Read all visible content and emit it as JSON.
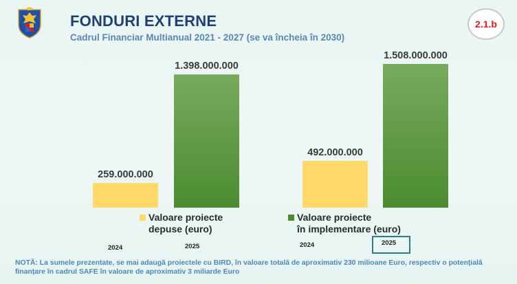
{
  "header": {
    "title": "FONDURI EXTERNE",
    "subtitle": "Cadrul Financiar Multianual 2021 - 2027 (se va încheia în 2030)",
    "badge": "2.1.b"
  },
  "colors": {
    "yellow": "#ffd96a",
    "green_top": "#77a85e",
    "green_bottom": "#4b8c2f",
    "title": "#1f3f7a",
    "accent": "#5b86b4"
  },
  "chart_data": {
    "type": "bar",
    "unit": "euro",
    "groups": [
      {
        "name": "Valoare proiecte depuse (euro)",
        "legend_line1": "Valoare proiecte",
        "legend_line2": "depuse (euro)",
        "bars": [
          {
            "year": "2024",
            "value": 259000000,
            "label": "259.000.000",
            "color": "yellow"
          },
          {
            "year": "2025",
            "value": 1398000000,
            "label": "1.398.000.000",
            "color": "green"
          }
        ]
      },
      {
        "name": "Valoare proiecte în implementare (euro)",
        "legend_line1": "Valoare proiecte",
        "legend_line2": "în implementare (euro)",
        "bars": [
          {
            "year": "2024",
            "value": 492000000,
            "label": "492.000.000",
            "color": "yellow"
          },
          {
            "year": "2025",
            "value": 1508000000,
            "label": "1.508.000.000",
            "color": "green"
          }
        ]
      }
    ],
    "ylim": [
      0,
      1508000000
    ]
  },
  "note": "NOTĂ: La sumele prezentate, se mai adaugă proiectele cu BIRD, în valoare totală de aproximativ 230 milioane Euro, respectiv o potențială finanțare în cadrul SAFE în valoare de aproximativ 3 miliarde Euro"
}
